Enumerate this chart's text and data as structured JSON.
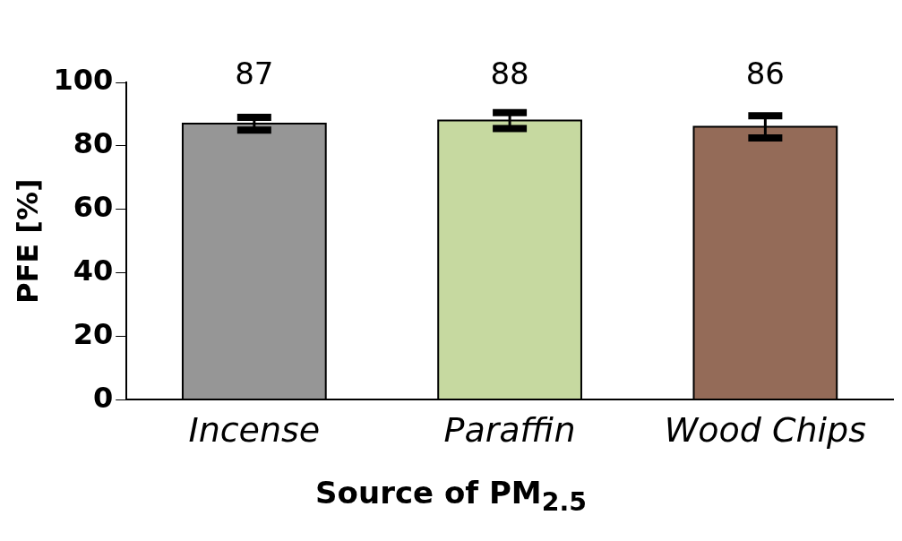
{
  "chart_data": {
    "type": "bar",
    "xlabel": "Source of PM$_{2.5}$",
    "ylabel": "PFE [%]",
    "categories": [
      "Incense",
      "Paraffin",
      "Wood Chips"
    ],
    "values": [
      87,
      88,
      86
    ],
    "colors": [
      "#969696",
      "#c6d9a0",
      "#946b58"
    ],
    "errors": [
      2,
      2.5,
      3.5
    ],
    "data_labels": true,
    "ylim": [
      0,
      100
    ],
    "yticks": [
      0,
      20,
      40,
      60,
      80,
      100
    ],
    "grid": false,
    "legend": false
  }
}
